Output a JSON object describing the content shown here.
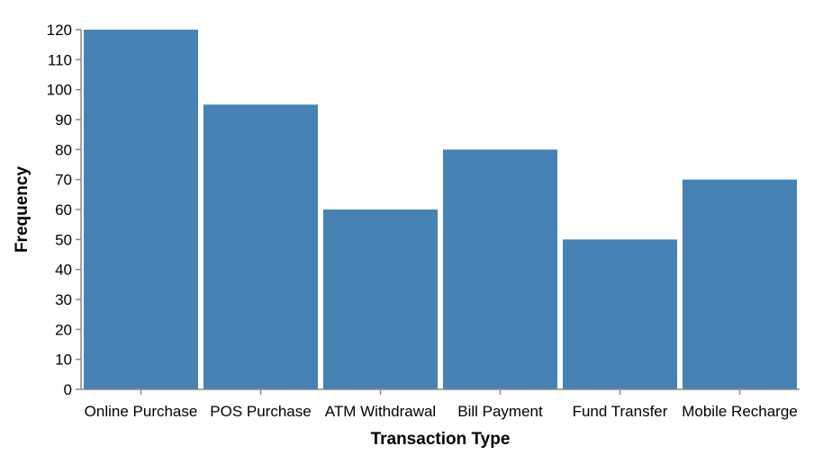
{
  "chart_data": {
    "type": "bar",
    "categories": [
      "Online Purchase",
      "POS Purchase",
      "ATM Withdrawal",
      "Bill Payment",
      "Fund Transfer",
      "Mobile Recharge"
    ],
    "values": [
      120,
      95,
      60,
      80,
      50,
      70
    ],
    "xlabel": "Transaction Type",
    "ylabel": "Frequency",
    "ylim": [
      0,
      120
    ],
    "yticks": [
      0,
      10,
      20,
      30,
      40,
      50,
      60,
      70,
      80,
      90,
      100,
      110,
      120
    ],
    "grid": false,
    "bar_color": "#4682b4",
    "axis_color": "#888888"
  }
}
